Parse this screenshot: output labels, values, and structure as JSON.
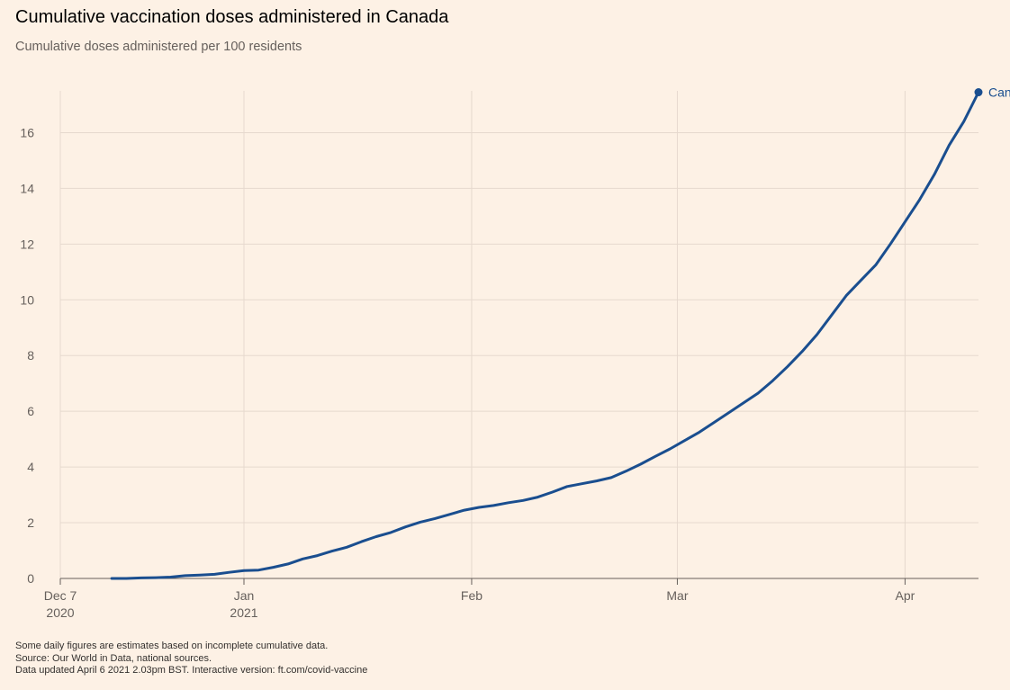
{
  "title": "Cumulative vaccination doses administered in Canada",
  "subtitle": "Cumulative doses administered per 100 residents",
  "footnotes": [
    "Some daily figures are estimates based on incomplete cumulative data.",
    "Source: Our World in Data, national sources.",
    "Data updated April 6 2021 2.03pm BST. Interactive version: ft.com/covid-vaccine"
  ],
  "colors": {
    "background": "#fdf1e5",
    "line": "#1a4e8f",
    "grid": "#e6d9ce"
  },
  "chart_data": {
    "type": "line",
    "title": "Cumulative vaccination doses administered in Canada",
    "subtitle": "Cumulative doses administered per 100 residents",
    "xlabel": "",
    "ylabel": "",
    "xlim": [
      "2020-12-07",
      "2021-04-11"
    ],
    "ylim": [
      0,
      17.5
    ],
    "grid": true,
    "y_ticks": [
      0,
      2,
      4,
      6,
      8,
      10,
      12,
      14,
      16
    ],
    "x_ticks": [
      {
        "date": "2020-12-07",
        "label": "Dec 7",
        "sublabel": "2020"
      },
      {
        "date": "2021-01-01",
        "label": "Jan",
        "sublabel": "2021"
      },
      {
        "date": "2021-02-01",
        "label": "Feb",
        "sublabel": ""
      },
      {
        "date": "2021-03-01",
        "label": "Mar",
        "sublabel": ""
      },
      {
        "date": "2021-04-01",
        "label": "Apr",
        "sublabel": ""
      }
    ],
    "series": [
      {
        "name": "Canada",
        "label": "Canada",
        "points": [
          [
            "2020-12-14",
            0.0
          ],
          [
            "2020-12-16",
            0.0
          ],
          [
            "2020-12-18",
            0.02
          ],
          [
            "2020-12-20",
            0.03
          ],
          [
            "2020-12-22",
            0.05
          ],
          [
            "2020-12-24",
            0.1
          ],
          [
            "2020-12-26",
            0.12
          ],
          [
            "2020-12-28",
            0.15
          ],
          [
            "2020-12-30",
            0.22
          ],
          [
            "2021-01-01",
            0.28
          ],
          [
            "2021-01-03",
            0.3
          ],
          [
            "2021-01-05",
            0.4
          ],
          [
            "2021-01-07",
            0.52
          ],
          [
            "2021-01-09",
            0.7
          ],
          [
            "2021-01-11",
            0.82
          ],
          [
            "2021-01-13",
            0.98
          ],
          [
            "2021-01-15",
            1.12
          ],
          [
            "2021-01-17",
            1.32
          ],
          [
            "2021-01-19",
            1.5
          ],
          [
            "2021-01-21",
            1.65
          ],
          [
            "2021-01-23",
            1.85
          ],
          [
            "2021-01-25",
            2.02
          ],
          [
            "2021-01-27",
            2.15
          ],
          [
            "2021-01-29",
            2.3
          ],
          [
            "2021-01-31",
            2.45
          ],
          [
            "2021-02-02",
            2.55
          ],
          [
            "2021-02-04",
            2.62
          ],
          [
            "2021-02-06",
            2.72
          ],
          [
            "2021-02-08",
            2.8
          ],
          [
            "2021-02-10",
            2.92
          ],
          [
            "2021-02-12",
            3.1
          ],
          [
            "2021-02-14",
            3.3
          ],
          [
            "2021-02-16",
            3.4
          ],
          [
            "2021-02-18",
            3.5
          ],
          [
            "2021-02-20",
            3.62
          ],
          [
            "2021-02-22",
            3.85
          ],
          [
            "2021-02-24",
            4.1
          ],
          [
            "2021-02-26",
            4.38
          ],
          [
            "2021-02-28",
            4.65
          ],
          [
            "2021-03-02",
            4.95
          ],
          [
            "2021-03-04",
            5.25
          ],
          [
            "2021-03-06",
            5.6
          ],
          [
            "2021-03-08",
            5.95
          ],
          [
            "2021-03-10",
            6.3
          ],
          [
            "2021-03-12",
            6.65
          ],
          [
            "2021-03-14",
            7.1
          ],
          [
            "2021-03-16",
            7.6
          ],
          [
            "2021-03-18",
            8.15
          ],
          [
            "2021-03-20",
            8.75
          ],
          [
            "2021-03-22",
            9.45
          ],
          [
            "2021-03-24",
            10.15
          ],
          [
            "2021-03-26",
            10.7
          ],
          [
            "2021-03-28",
            11.25
          ],
          [
            "2021-03-30",
            12.0
          ],
          [
            "2021-04-01",
            12.8
          ],
          [
            "2021-04-03",
            13.6
          ],
          [
            "2021-04-05",
            14.5
          ],
          [
            "2021-04-07",
            15.55
          ],
          [
            "2021-04-09",
            16.4
          ],
          [
            "2021-04-11",
            17.45
          ]
        ]
      }
    ]
  }
}
